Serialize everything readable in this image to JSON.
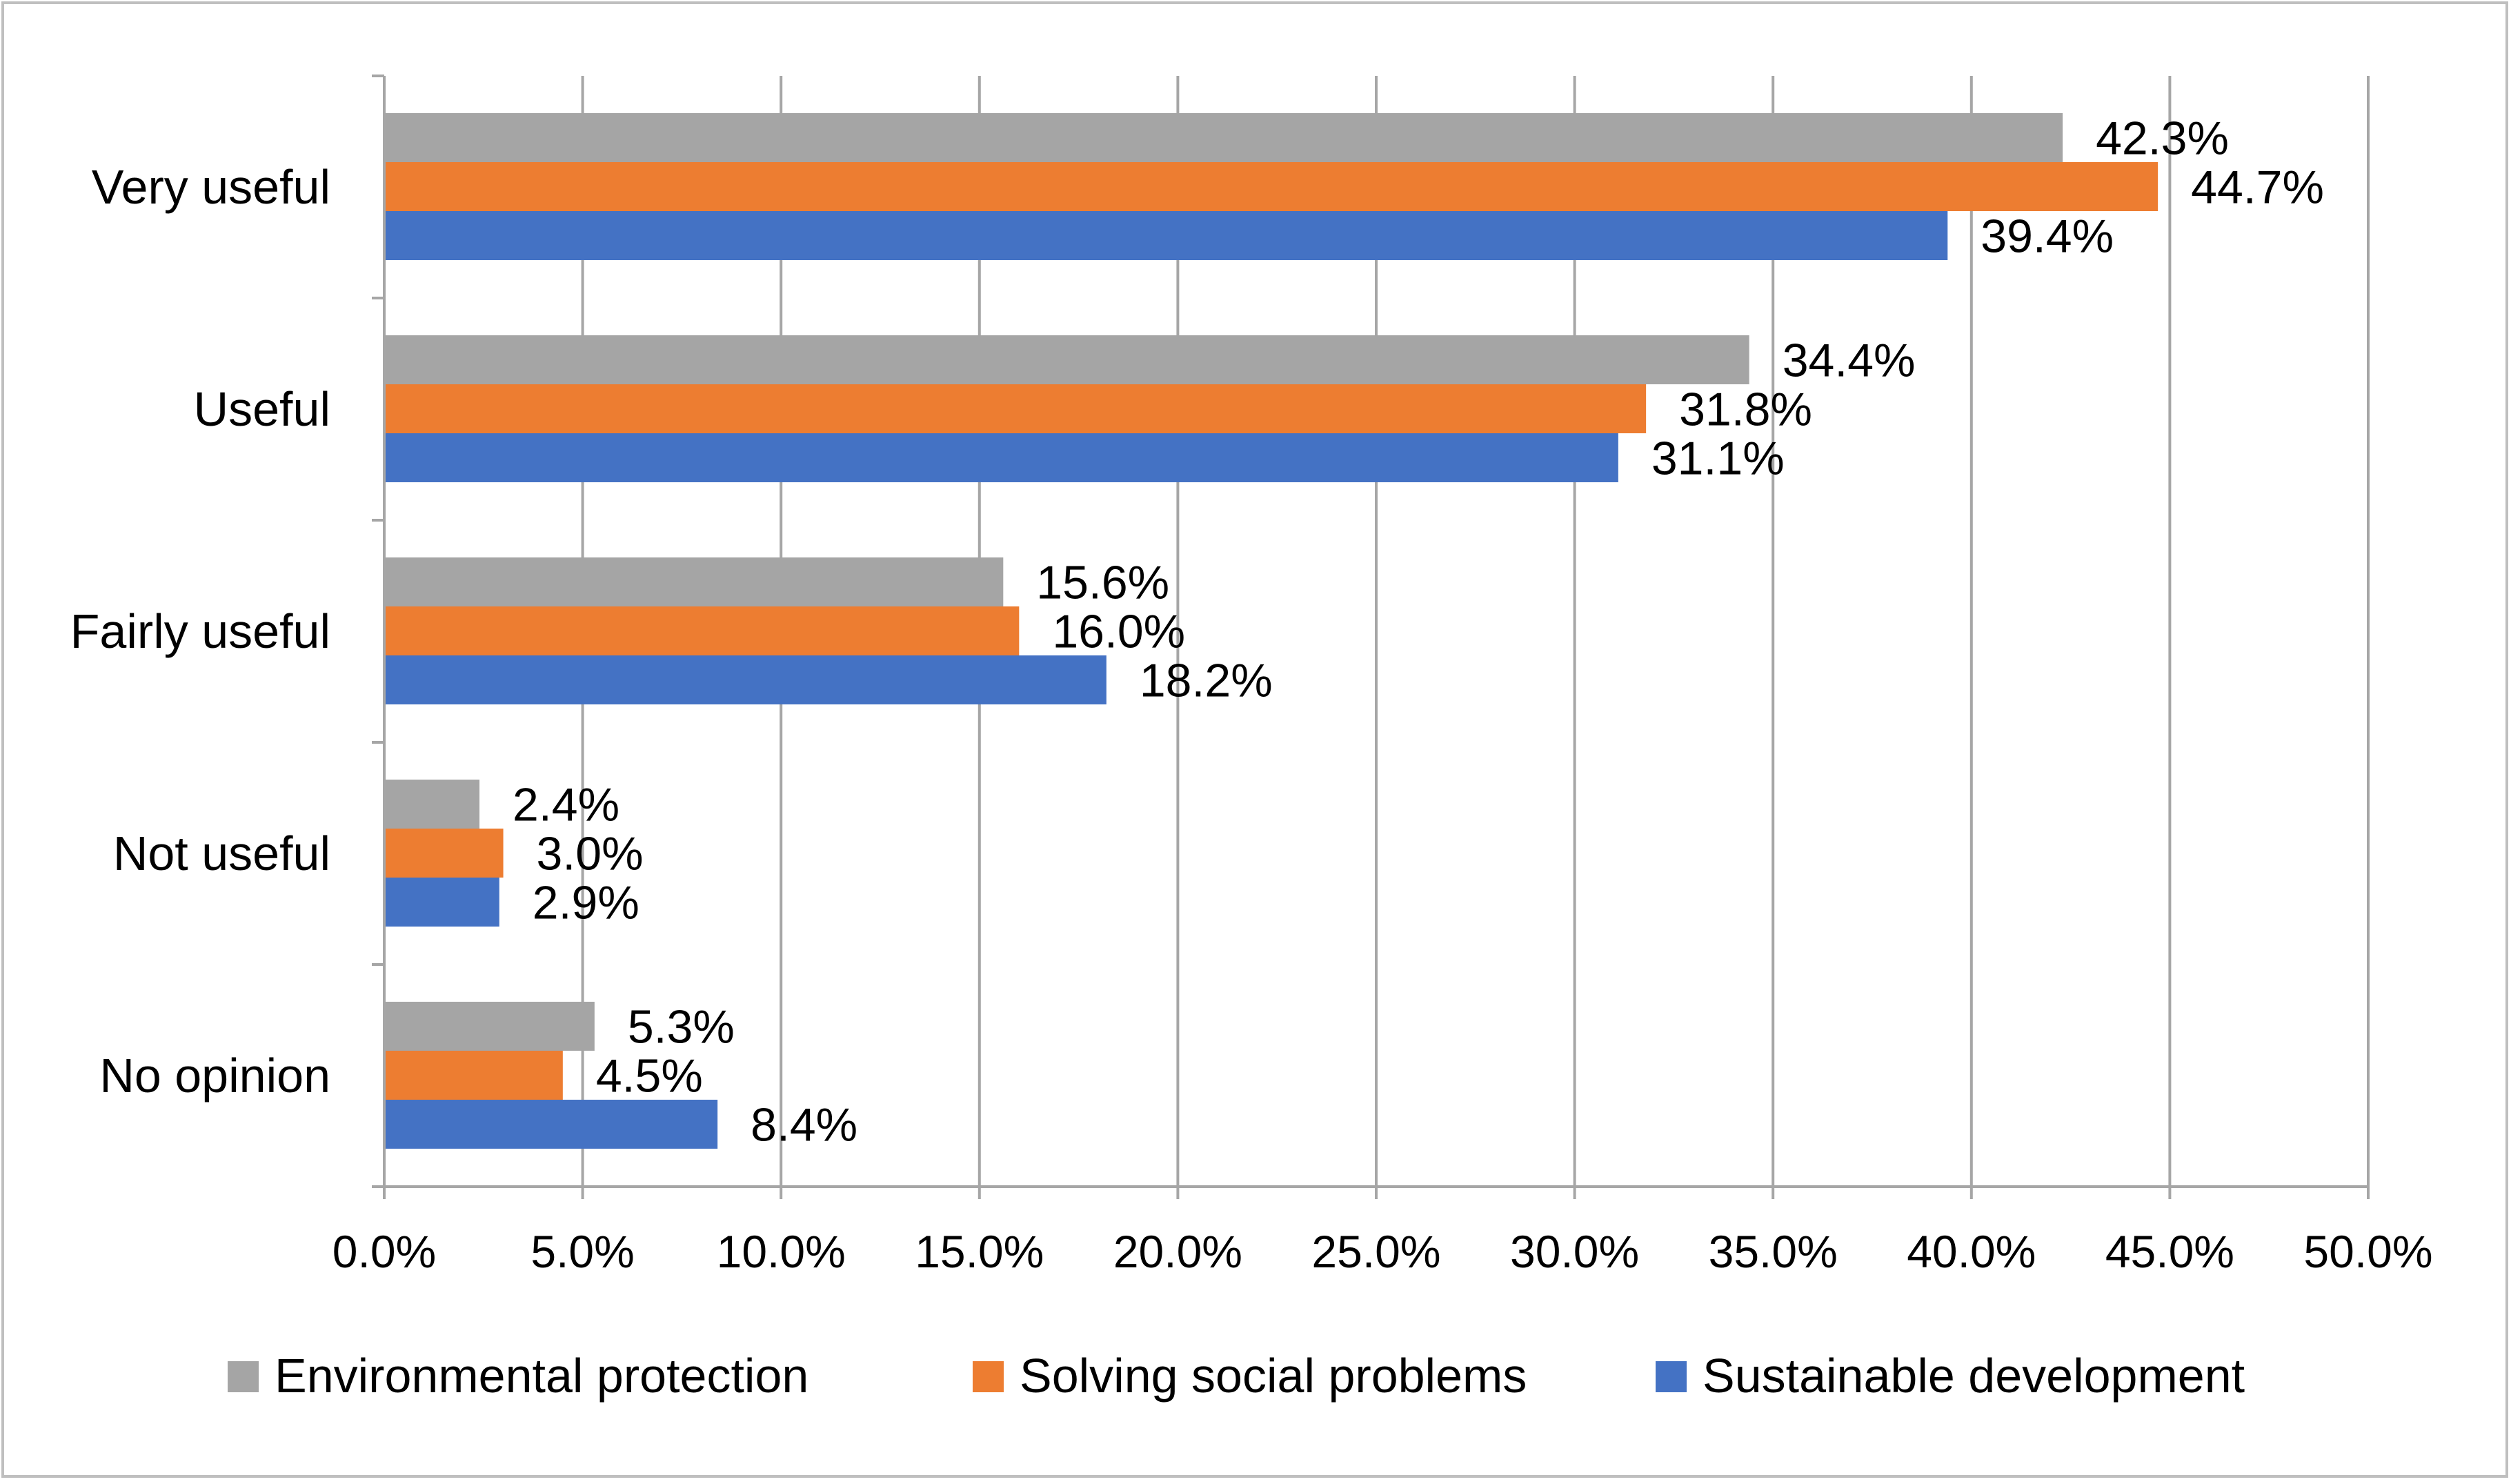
{
  "chart_data": {
    "type": "bar",
    "orientation": "horizontal",
    "title": "",
    "xlabel": "",
    "ylabel": "",
    "categories": [
      "Very useful",
      "Useful",
      "Fairly useful",
      "Not useful",
      "No opinion"
    ],
    "series": [
      {
        "name": "Environmental protection",
        "color": "#A5A5A5",
        "values": [
          42.3,
          34.4,
          15.6,
          2.4,
          5.3
        ],
        "labels": [
          "42.3%",
          "34.4%",
          "15.6%",
          "2.4%",
          "5.3%"
        ]
      },
      {
        "name": "Solving social problems",
        "color": "#ED7D31",
        "values": [
          44.7,
          31.8,
          16.0,
          3.0,
          4.5
        ],
        "labels": [
          "44.7%",
          "31.8%",
          "16.0%",
          "3.0%",
          "4.5%"
        ]
      },
      {
        "name": "Sustainable development",
        "color": "#4472C4",
        "values": [
          39.4,
          31.1,
          18.2,
          2.9,
          8.4
        ],
        "labels": [
          "39.4%",
          "31.1%",
          "18.2%",
          "2.9%",
          "8.4%"
        ]
      }
    ],
    "xlim": [
      0,
      50
    ],
    "x_ticks": [
      "0.0%",
      "5.0%",
      "10.0%",
      "15.0%",
      "20.0%",
      "25.0%",
      "30.0%",
      "35.0%",
      "40.0%",
      "45.0%",
      "50.0%"
    ],
    "grid": true,
    "legend_position": "bottom"
  }
}
